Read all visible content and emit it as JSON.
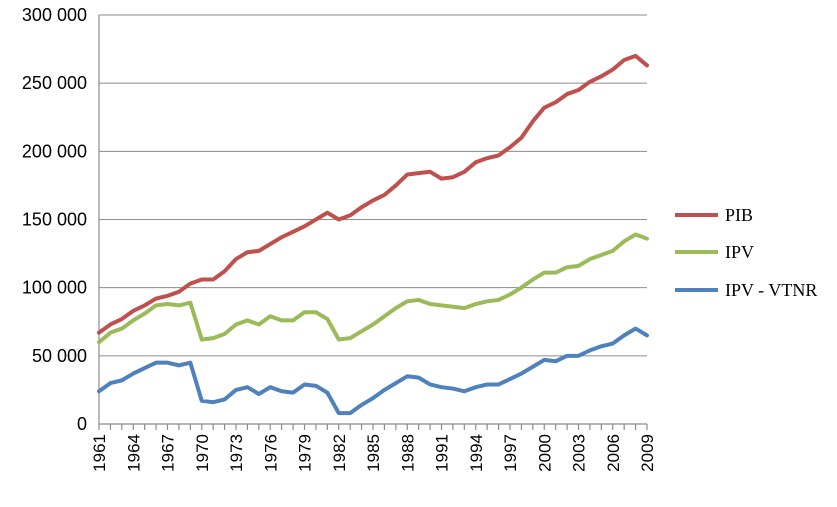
{
  "chart_data": {
    "type": "line",
    "title": "",
    "xlabel": "",
    "ylabel": "",
    "x": [
      1961,
      1962,
      1963,
      1964,
      1965,
      1966,
      1967,
      1968,
      1969,
      1970,
      1971,
      1972,
      1973,
      1974,
      1975,
      1976,
      1977,
      1978,
      1979,
      1980,
      1981,
      1982,
      1983,
      1984,
      1985,
      1986,
      1987,
      1988,
      1989,
      1990,
      1991,
      1992,
      1993,
      1994,
      1995,
      1996,
      1997,
      1998,
      1999,
      2000,
      2001,
      2002,
      2003,
      2004,
      2005,
      2006,
      2007,
      2008,
      2009
    ],
    "xtick_labels": [
      "1961",
      "1964",
      "1967",
      "1970",
      "1973",
      "1976",
      "1979",
      "1982",
      "1985",
      "1988",
      "1991",
      "1994",
      "1997",
      "2000",
      "2003",
      "2006",
      "2009"
    ],
    "ytick_labels": [
      "0",
      "50 000",
      "100 000",
      "150 000",
      "200 000",
      "250 000",
      "300 000"
    ],
    "yticks": [
      0,
      50000,
      100000,
      150000,
      200000,
      250000,
      300000
    ],
    "ylim": [
      0,
      300000
    ],
    "grid": "horizontal",
    "legend_position": "right",
    "series": [
      {
        "name": "PIB",
        "color": "#c0504d",
        "values": [
          67000,
          73000,
          77000,
          83000,
          87000,
          92000,
          94000,
          97000,
          103000,
          106000,
          106000,
          112000,
          121000,
          126000,
          127000,
          132000,
          137000,
          141000,
          145000,
          150000,
          155000,
          150000,
          153000,
          159000,
          164000,
          168000,
          175000,
          183000,
          184000,
          185000,
          180000,
          181000,
          185000,
          192000,
          195000,
          197000,
          203000,
          210000,
          222000,
          232000,
          236000,
          242000,
          245000,
          251000,
          255000,
          260000,
          267000,
          270000,
          263000
        ]
      },
      {
        "name": "IPV",
        "color": "#9bbb59",
        "values": [
          60000,
          67000,
          70000,
          76000,
          81000,
          87000,
          88000,
          87000,
          89000,
          62000,
          63000,
          66000,
          73000,
          76000,
          73000,
          79000,
          76000,
          76000,
          82000,
          82000,
          77000,
          62000,
          63000,
          68000,
          73000,
          79000,
          85000,
          90000,
          91000,
          88000,
          87000,
          86000,
          85000,
          88000,
          90000,
          91000,
          95000,
          100000,
          106000,
          111000,
          111000,
          115000,
          116000,
          121000,
          124000,
          127000,
          134000,
          139000,
          136000
        ]
      },
      {
        "name": "IPV - VTNR",
        "color": "#4f81bd",
        "values": [
          24000,
          30000,
          32000,
          37000,
          41000,
          45000,
          45000,
          43000,
          45000,
          17000,
          16000,
          18000,
          25000,
          27000,
          22000,
          27000,
          24000,
          23000,
          29000,
          28000,
          23000,
          8000,
          8000,
          14000,
          19000,
          25000,
          30000,
          35000,
          34000,
          29000,
          27000,
          26000,
          24000,
          27000,
          29000,
          29000,
          33000,
          37000,
          42000,
          47000,
          46000,
          50000,
          50000,
          54000,
          57000,
          59000,
          65000,
          70000,
          65000
        ]
      }
    ]
  }
}
